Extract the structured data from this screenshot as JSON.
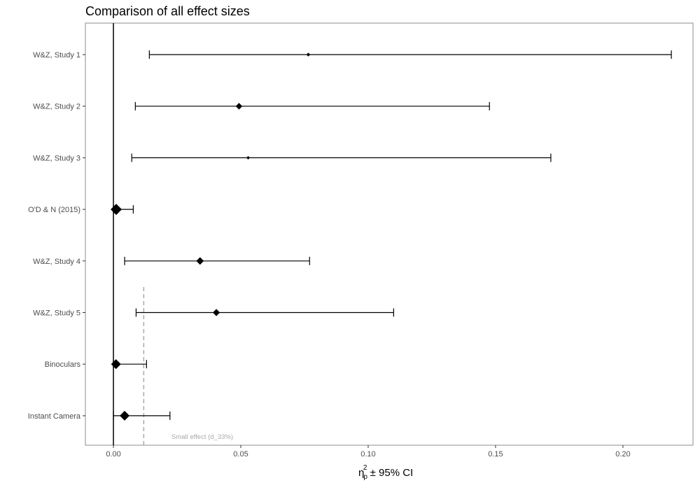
{
  "chart_data": {
    "type": "forest",
    "title": "Comparison of all effect sizes",
    "xlabel": "η_p^2 ± 95% CI",
    "xlabel_parts": {
      "symbol": "η",
      "sub": "p",
      "sup": "2",
      "rest": " ± 95% CI"
    },
    "xlim": [
      -0.011,
      0.2275
    ],
    "xticks": [
      0.0,
      0.05,
      0.1,
      0.15,
      0.2
    ],
    "xtick_labels": [
      "0.00",
      "0.05",
      "0.10",
      "0.15",
      "0.20"
    ],
    "grid": false,
    "rows": [
      {
        "label": "W&Z, Study 1",
        "estimate": 0.0765,
        "lower": 0.0141,
        "upper": 0.219,
        "weight": 0.2
      },
      {
        "label": "W&Z, Study 2",
        "estimate": 0.0493,
        "lower": 0.0086,
        "upper": 0.1476,
        "weight": 0.5
      },
      {
        "label": "W&Z, Study 3",
        "estimate": 0.0529,
        "lower": 0.0072,
        "upper": 0.1717,
        "weight": 0.15
      },
      {
        "label": "O'D & N (2015)",
        "estimate": 0.0011,
        "lower": 0.0,
        "upper": 0.0078,
        "weight": 1.0
      },
      {
        "label": "W&Z, Study 4",
        "estimate": 0.034,
        "lower": 0.0044,
        "upper": 0.077,
        "weight": 0.6
      },
      {
        "label": "W&Z, Study 5",
        "estimate": 0.0404,
        "lower": 0.0089,
        "upper": 0.11,
        "weight": 0.55
      },
      {
        "label": "Binoculars",
        "estimate": 0.001,
        "lower": 0.0,
        "upper": 0.013,
        "weight": 0.85
      },
      {
        "label": "Instant Camera",
        "estimate": 0.0044,
        "lower": 0.0,
        "upper": 0.0222,
        "weight": 0.85
      }
    ],
    "reference_line": {
      "value": 0.0
    },
    "small_effect_line": {
      "value": 0.0119,
      "label": "Small effect (d_33%)",
      "color": "#aaaaaa"
    }
  }
}
